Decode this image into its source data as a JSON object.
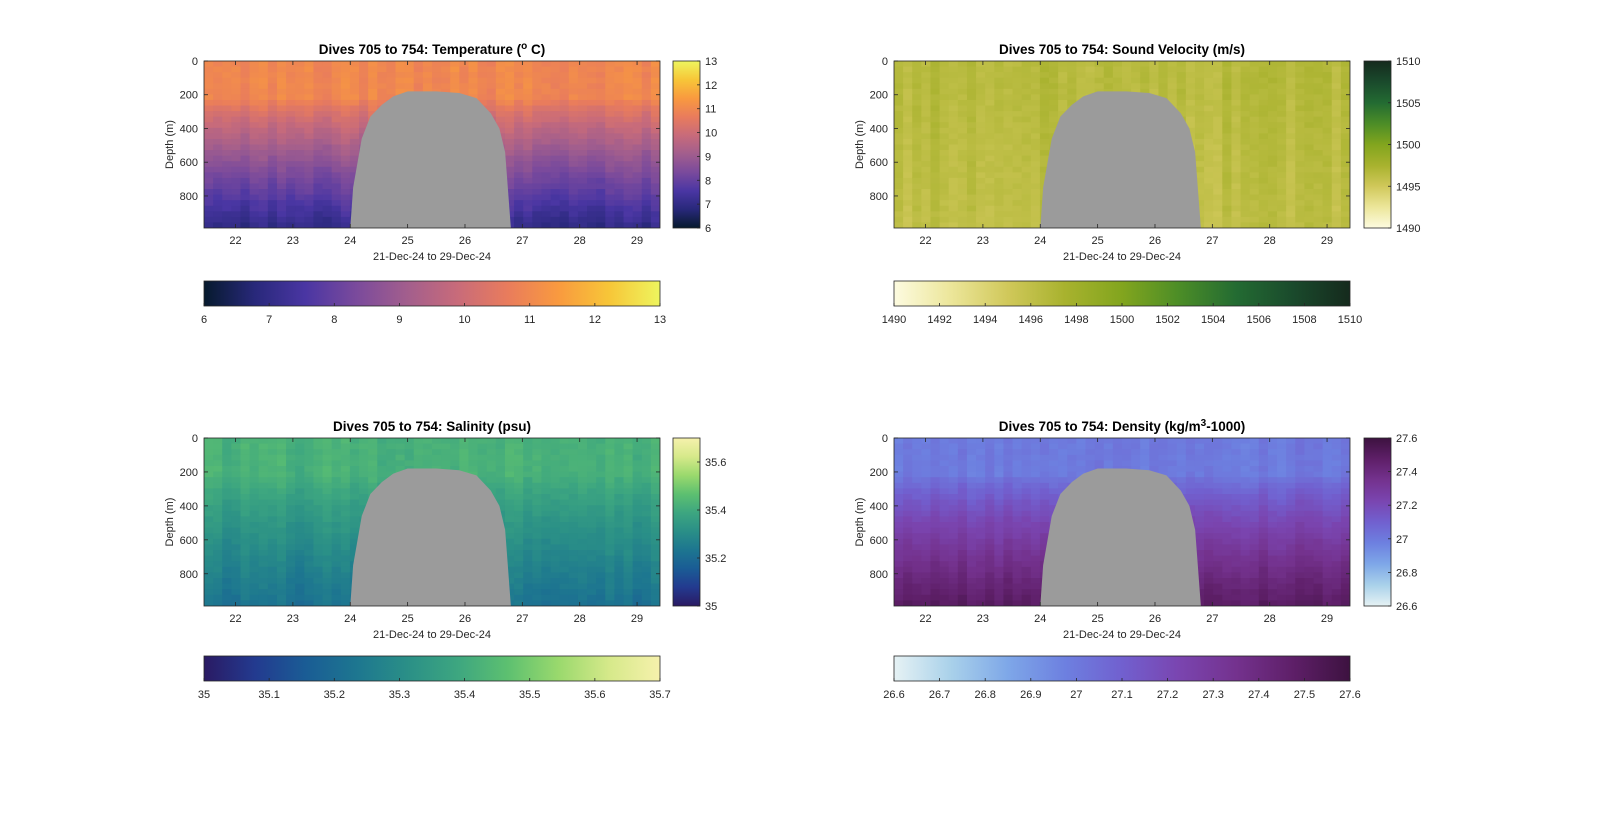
{
  "chart_data": [
    {
      "type": "heatmap",
      "title": "Dives 705 to 754: Temperature (",
      "title_super": "o",
      "title_suffix": " C)",
      "xlabel": "21-Dec-24 to 29-Dec-24",
      "ylabel": "Depth (m)",
      "xlim": [
        21.45,
        29.4
      ],
      "ylim": [
        0,
        990
      ],
      "xticks": [
        "22",
        "23",
        "24",
        "25",
        "26",
        "27",
        "28",
        "29"
      ],
      "yticks": [
        "0",
        "200",
        "400",
        "600",
        "800"
      ],
      "clim": [
        6,
        13
      ],
      "cbar_side_ticks": [
        "13",
        "12",
        "11",
        "10",
        "9",
        "8",
        "7",
        "6"
      ],
      "cbar_bottom_ticks": [
        "6",
        "7",
        "8",
        "9",
        "10",
        "11",
        "12",
        "13"
      ],
      "colormap": [
        "#061a2d",
        "#28287a",
        "#4a36a3",
        "#7a4a9c",
        "#a25e8d",
        "#c86b7a",
        "#e97c5c",
        "#f99a3f",
        "#f7c638",
        "#eef55e"
      ],
      "gap_color": "#9b9b9b",
      "profile": {
        "surface": 11.0,
        "mixed_layer_depth": 220,
        "deep": 7.0
      },
      "bottom_of_data": [
        {
          "x": 21.45,
          "depth": 990
        },
        {
          "x": 24.0,
          "depth": 990
        },
        {
          "x": 24.05,
          "depth": 750
        },
        {
          "x": 24.2,
          "depth": 460
        },
        {
          "x": 24.35,
          "depth": 330
        },
        {
          "x": 24.55,
          "depth": 260
        },
        {
          "x": 24.75,
          "depth": 210
        },
        {
          "x": 25.0,
          "depth": 180
        },
        {
          "x": 25.5,
          "depth": 180
        },
        {
          "x": 25.9,
          "depth": 190
        },
        {
          "x": 26.2,
          "depth": 220
        },
        {
          "x": 26.45,
          "depth": 310
        },
        {
          "x": 26.6,
          "depth": 400
        },
        {
          "x": 26.7,
          "depth": 540
        },
        {
          "x": 26.8,
          "depth": 990
        },
        {
          "x": 29.4,
          "depth": 990
        }
      ]
    },
    {
      "type": "heatmap",
      "title": "Dives 705 to 754: Sound Velocity (m/s)",
      "xlabel": "21-Dec-24 to 29-Dec-24",
      "ylabel": "Depth (m)",
      "xlim": [
        21.45,
        29.4
      ],
      "ylim": [
        0,
        990
      ],
      "xticks": [
        "22",
        "23",
        "24",
        "25",
        "26",
        "27",
        "28",
        "29"
      ],
      "yticks": [
        "0",
        "200",
        "400",
        "600",
        "800"
      ],
      "clim": [
        1490,
        1510
      ],
      "cbar_side_ticks": [
        "1510",
        "1505",
        "1500",
        "1495",
        "1490"
      ],
      "cbar_bottom_ticks": [
        "1490",
        "1492",
        "1494",
        "1496",
        "1498",
        "1500",
        "1502",
        "1504",
        "1506",
        "1508",
        "1510"
      ],
      "colormap": [
        "#fdfbe0",
        "#ece69a",
        "#d0c85a",
        "#a8b22e",
        "#82a51e",
        "#4c8d27",
        "#236b32",
        "#1a4a2c",
        "#152a1d"
      ],
      "gap_color": "#9b9b9b",
      "profile": {
        "surface": 1496.5,
        "mixed_layer_depth": 220,
        "deep": 1496.0
      },
      "bottom_of_data": [
        {
          "x": 21.45,
          "depth": 990
        },
        {
          "x": 24.0,
          "depth": 990
        },
        {
          "x": 24.05,
          "depth": 750
        },
        {
          "x": 24.2,
          "depth": 460
        },
        {
          "x": 24.35,
          "depth": 330
        },
        {
          "x": 24.55,
          "depth": 260
        },
        {
          "x": 24.75,
          "depth": 210
        },
        {
          "x": 25.0,
          "depth": 180
        },
        {
          "x": 25.5,
          "depth": 180
        },
        {
          "x": 25.9,
          "depth": 190
        },
        {
          "x": 26.2,
          "depth": 220
        },
        {
          "x": 26.45,
          "depth": 310
        },
        {
          "x": 26.6,
          "depth": 400
        },
        {
          "x": 26.7,
          "depth": 540
        },
        {
          "x": 26.8,
          "depth": 990
        },
        {
          "x": 29.4,
          "depth": 990
        }
      ]
    },
    {
      "type": "heatmap",
      "title": "Dives 705 to 754: Salinity (psu)",
      "xlabel": "21-Dec-24 to 29-Dec-24",
      "ylabel": "Depth (m)",
      "xlim": [
        21.45,
        29.4
      ],
      "ylim": [
        0,
        990
      ],
      "xticks": [
        "22",
        "23",
        "24",
        "25",
        "26",
        "27",
        "28",
        "29"
      ],
      "yticks": [
        "0",
        "200",
        "400",
        "600",
        "800"
      ],
      "clim": [
        35,
        35.7
      ],
      "cbar_side_ticks": [
        "35.6",
        "35.4",
        "35.2",
        "35"
      ],
      "cbar_side_tick_values": [
        35.6,
        35.4,
        35.2,
        35.0
      ],
      "cbar_bottom_ticks": [
        "35",
        "35.1",
        "35.2",
        "35.3",
        "35.4",
        "35.5",
        "35.6",
        "35.7"
      ],
      "colormap": [
        "#2a1a63",
        "#233a8f",
        "#1a5c95",
        "#1d7690",
        "#2a8f87",
        "#3da680",
        "#5dc070",
        "#9ad96d",
        "#d6e98a",
        "#f6f1ac"
      ],
      "gap_color": "#9b9b9b",
      "profile": {
        "surface": 35.42,
        "mixed_layer_depth": 220,
        "deep": 35.22
      },
      "bottom_of_data": [
        {
          "x": 21.45,
          "depth": 990
        },
        {
          "x": 24.0,
          "depth": 990
        },
        {
          "x": 24.05,
          "depth": 750
        },
        {
          "x": 24.2,
          "depth": 460
        },
        {
          "x": 24.35,
          "depth": 330
        },
        {
          "x": 24.55,
          "depth": 260
        },
        {
          "x": 24.75,
          "depth": 210
        },
        {
          "x": 25.0,
          "depth": 180
        },
        {
          "x": 25.5,
          "depth": 180
        },
        {
          "x": 25.9,
          "depth": 190
        },
        {
          "x": 26.2,
          "depth": 220
        },
        {
          "x": 26.45,
          "depth": 310
        },
        {
          "x": 26.6,
          "depth": 400
        },
        {
          "x": 26.7,
          "depth": 540
        },
        {
          "x": 26.8,
          "depth": 990
        },
        {
          "x": 29.4,
          "depth": 990
        }
      ]
    },
    {
      "type": "heatmap",
      "title": "Dives 705 to 754: Density (kg/m",
      "title_super": "3",
      "title_suffix": "-1000)",
      "xlabel": "21-Dec-24 to 29-Dec-24",
      "ylabel": "Depth (m)",
      "xlim": [
        21.45,
        29.4
      ],
      "ylim": [
        0,
        990
      ],
      "xticks": [
        "22",
        "23",
        "24",
        "25",
        "26",
        "27",
        "28",
        "29"
      ],
      "yticks": [
        "0",
        "200",
        "400",
        "600",
        "800"
      ],
      "clim": [
        26.6,
        27.6
      ],
      "cbar_side_ticks": [
        "27.6",
        "27.4",
        "27.2",
        "27",
        "26.8",
        "26.6"
      ],
      "cbar_bottom_ticks": [
        "26.6",
        "26.7",
        "26.8",
        "26.9",
        "27",
        "27.1",
        "27.2",
        "27.3",
        "27.4",
        "27.5",
        "27.6"
      ],
      "colormap": [
        "#e6f2f4",
        "#a9d1ea",
        "#7ea7e8",
        "#6d80e0",
        "#7160cf",
        "#7a45b0",
        "#74328e",
        "#5e1f68",
        "#3d1240"
      ],
      "gap_color": "#9b9b9b",
      "profile": {
        "surface": 27.0,
        "mixed_layer_depth": 220,
        "deep": 27.5
      },
      "bottom_of_data": [
        {
          "x": 21.45,
          "depth": 990
        },
        {
          "x": 24.0,
          "depth": 990
        },
        {
          "x": 24.05,
          "depth": 750
        },
        {
          "x": 24.2,
          "depth": 460
        },
        {
          "x": 24.35,
          "depth": 330
        },
        {
          "x": 24.55,
          "depth": 260
        },
        {
          "x": 24.75,
          "depth": 210
        },
        {
          "x": 25.0,
          "depth": 180
        },
        {
          "x": 25.5,
          "depth": 180
        },
        {
          "x": 25.9,
          "depth": 190
        },
        {
          "x": 26.2,
          "depth": 220
        },
        {
          "x": 26.45,
          "depth": 310
        },
        {
          "x": 26.6,
          "depth": 400
        },
        {
          "x": 26.7,
          "depth": 540
        },
        {
          "x": 26.8,
          "depth": 990
        },
        {
          "x": 29.4,
          "depth": 990
        }
      ]
    }
  ]
}
